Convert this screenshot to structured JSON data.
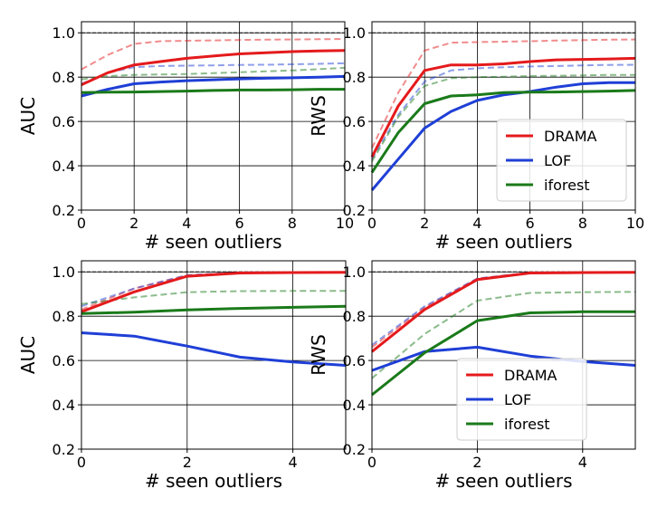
{
  "colors": {
    "DRAMA": "#e41a1c",
    "LOF": "#1f3fd6",
    "iforest": "#1a7a1a"
  },
  "chart_data": [
    {
      "type": "line",
      "xlabel": "# seen outliers",
      "ylabel": "AUC",
      "xlim": [
        0,
        10
      ],
      "ylim": [
        0.2,
        1.05
      ],
      "xticks": [
        "0",
        "2",
        "4",
        "6",
        "8",
        "10"
      ],
      "yticks": [
        "0.2",
        "0.4",
        "0.6",
        "0.8",
        "1.0"
      ],
      "grid": true,
      "legend": "",
      "reference_line": 1.0,
      "x": [
        0,
        1,
        2,
        3,
        4,
        5,
        6,
        7,
        8,
        9,
        10
      ],
      "series": [
        {
          "name": "DRAMA",
          "style": "solid",
          "values": [
            0.765,
            0.82,
            0.855,
            0.87,
            0.885,
            0.895,
            0.905,
            0.91,
            0.915,
            0.918,
            0.92
          ]
        },
        {
          "name": "LOF",
          "style": "solid",
          "values": [
            0.715,
            0.745,
            0.77,
            0.778,
            0.784,
            0.788,
            0.792,
            0.795,
            0.797,
            0.8,
            0.803
          ]
        },
        {
          "name": "iforest",
          "style": "solid",
          "values": [
            0.73,
            0.732,
            0.733,
            0.735,
            0.737,
            0.74,
            0.742,
            0.742,
            0.743,
            0.745,
            0.745
          ]
        },
        {
          "name": "DRAMA",
          "style": "dashed",
          "values": [
            0.835,
            0.9,
            0.95,
            0.962,
            0.964,
            0.966,
            0.968,
            0.969,
            0.97,
            0.971,
            0.972
          ]
        },
        {
          "name": "LOF",
          "style": "dashed",
          "values": [
            0.77,
            0.82,
            0.845,
            0.85,
            0.852,
            0.853,
            0.855,
            0.856,
            0.858,
            0.86,
            0.863
          ]
        },
        {
          "name": "iforest",
          "style": "dashed",
          "values": [
            0.79,
            0.805,
            0.81,
            0.812,
            0.814,
            0.818,
            0.822,
            0.826,
            0.83,
            0.836,
            0.842
          ]
        }
      ]
    },
    {
      "type": "line",
      "xlabel": "# seen outliers",
      "ylabel": "RWS",
      "xlim": [
        0,
        10
      ],
      "ylim": [
        0.2,
        1.05
      ],
      "xticks": [
        "0",
        "2",
        "4",
        "6",
        "8",
        "10"
      ],
      "yticks": [
        "0.2",
        "0.4",
        "0.6",
        "0.8",
        "1.0"
      ],
      "grid": true,
      "legend": "lower-right",
      "reference_line": 1.0,
      "x": [
        0,
        1,
        2,
        3,
        4,
        5,
        6,
        7,
        8,
        9,
        10
      ],
      "series": [
        {
          "name": "DRAMA",
          "style": "solid",
          "values": [
            0.44,
            0.67,
            0.83,
            0.855,
            0.855,
            0.86,
            0.87,
            0.878,
            0.88,
            0.882,
            0.885
          ]
        },
        {
          "name": "LOF",
          "style": "solid",
          "values": [
            0.29,
            0.43,
            0.57,
            0.645,
            0.695,
            0.72,
            0.735,
            0.755,
            0.77,
            0.775,
            0.775
          ]
        },
        {
          "name": "iforest",
          "style": "solid",
          "values": [
            0.37,
            0.55,
            0.68,
            0.715,
            0.72,
            0.73,
            0.732,
            0.733,
            0.735,
            0.737,
            0.74
          ]
        },
        {
          "name": "DRAMA",
          "style": "dashed",
          "values": [
            0.48,
            0.73,
            0.92,
            0.955,
            0.958,
            0.96,
            0.962,
            0.965,
            0.967,
            0.969,
            0.97
          ]
        },
        {
          "name": "LOF",
          "style": "dashed",
          "values": [
            0.43,
            0.63,
            0.78,
            0.83,
            0.84,
            0.845,
            0.848,
            0.85,
            0.853,
            0.855,
            0.856
          ]
        },
        {
          "name": "iforest",
          "style": "dashed",
          "values": [
            0.42,
            0.62,
            0.76,
            0.795,
            0.8,
            0.802,
            0.805,
            0.806,
            0.808,
            0.81,
            0.81
          ]
        }
      ]
    },
    {
      "type": "line",
      "xlabel": "# seen outliers",
      "ylabel": "AUC",
      "xlim": [
        0,
        5
      ],
      "ylim": [
        0.2,
        1.05
      ],
      "xticks": [
        "0",
        "2",
        "4"
      ],
      "yticks": [
        "0.2",
        "0.4",
        "0.6",
        "0.8",
        "1.0"
      ],
      "grid": true,
      "legend": "",
      "reference_line": 1.0,
      "x": [
        0,
        1,
        2,
        3,
        4,
        5
      ],
      "series": [
        {
          "name": "DRAMA",
          "style": "solid",
          "values": [
            0.82,
            0.91,
            0.98,
            0.995,
            0.997,
            0.998
          ]
        },
        {
          "name": "LOF",
          "style": "solid",
          "values": [
            0.725,
            0.71,
            0.665,
            0.615,
            0.593,
            0.578
          ]
        },
        {
          "name": "iforest",
          "style": "solid",
          "values": [
            0.812,
            0.818,
            0.828,
            0.835,
            0.84,
            0.845
          ]
        },
        {
          "name": "DRAMA",
          "style": "dashed",
          "values": [
            0.83,
            0.925,
            0.985,
            0.997,
            0.998,
            0.999
          ]
        },
        {
          "name": "LOF",
          "style": "dashed",
          "values": [
            0.845,
            0.925,
            0.985,
            0.997,
            0.998,
            0.999
          ]
        },
        {
          "name": "iforest",
          "style": "dashed",
          "values": [
            0.855,
            0.885,
            0.908,
            0.913,
            0.914,
            0.914
          ]
        }
      ]
    },
    {
      "type": "line",
      "xlabel": "# seen outliers",
      "ylabel": "RWS",
      "xlim": [
        0,
        5
      ],
      "ylim": [
        0.2,
        1.05
      ],
      "xticks": [
        "0",
        "2",
        "4"
      ],
      "yticks": [
        "0.2",
        "0.4",
        "0.6",
        "0.8",
        "1.0"
      ],
      "grid": true,
      "legend": "lower-center",
      "reference_line": 1.0,
      "x": [
        0,
        1,
        2,
        3,
        4,
        5
      ],
      "series": [
        {
          "name": "DRAMA",
          "style": "solid",
          "values": [
            0.64,
            0.83,
            0.965,
            0.995,
            0.997,
            0.998
          ]
        },
        {
          "name": "LOF",
          "style": "solid",
          "values": [
            0.555,
            0.64,
            0.66,
            0.62,
            0.595,
            0.578
          ]
        },
        {
          "name": "iforest",
          "style": "solid",
          "values": [
            0.445,
            0.635,
            0.78,
            0.815,
            0.82,
            0.82
          ]
        },
        {
          "name": "DRAMA",
          "style": "dashed",
          "values": [
            0.66,
            0.84,
            0.97,
            0.996,
            0.998,
            0.999
          ]
        },
        {
          "name": "LOF",
          "style": "dashed",
          "values": [
            0.67,
            0.845,
            0.97,
            0.996,
            0.998,
            0.999
          ]
        },
        {
          "name": "iforest",
          "style": "dashed",
          "values": [
            0.52,
            0.72,
            0.87,
            0.905,
            0.908,
            0.91
          ]
        }
      ]
    }
  ]
}
